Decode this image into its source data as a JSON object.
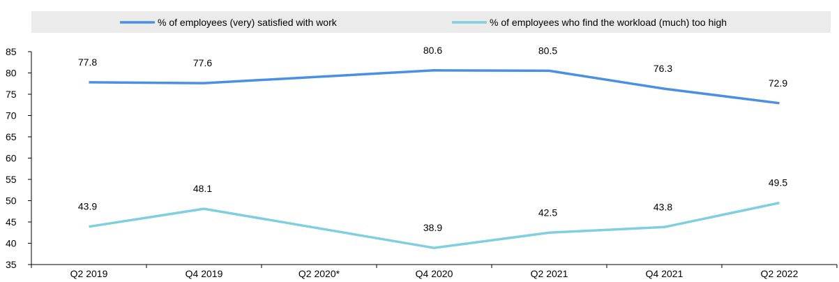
{
  "chart_data": {
    "type": "line",
    "categories": [
      "Q2 2019",
      "Q4 2019",
      "Q2 2020*",
      "Q4 2020",
      "Q2 2021",
      "Q4 2021",
      "Q2 2022"
    ],
    "ylim": [
      35,
      85
    ],
    "yticks": [
      35,
      40,
      45,
      50,
      55,
      60,
      65,
      70,
      75,
      80,
      85
    ],
    "grid": false,
    "legend_position": "top",
    "series": [
      {
        "name": "% of employees (very) satisfied with work",
        "color": "#4a90e2",
        "values": [
          77.8,
          77.6,
          null,
          80.6,
          80.5,
          76.3,
          72.9
        ],
        "labels": [
          "77.8",
          "77.6",
          "",
          "80.6",
          "80.5",
          "76.3",
          "72.9"
        ]
      },
      {
        "name": "%  of employees who find the workload (much) too high",
        "color": "#7ecfdf",
        "values": [
          43.9,
          48.1,
          null,
          38.9,
          42.5,
          43.8,
          49.5
        ],
        "labels": [
          "43.9",
          "48.1",
          "",
          "38.9",
          "42.5",
          "43.8",
          "49.5"
        ]
      }
    ]
  }
}
